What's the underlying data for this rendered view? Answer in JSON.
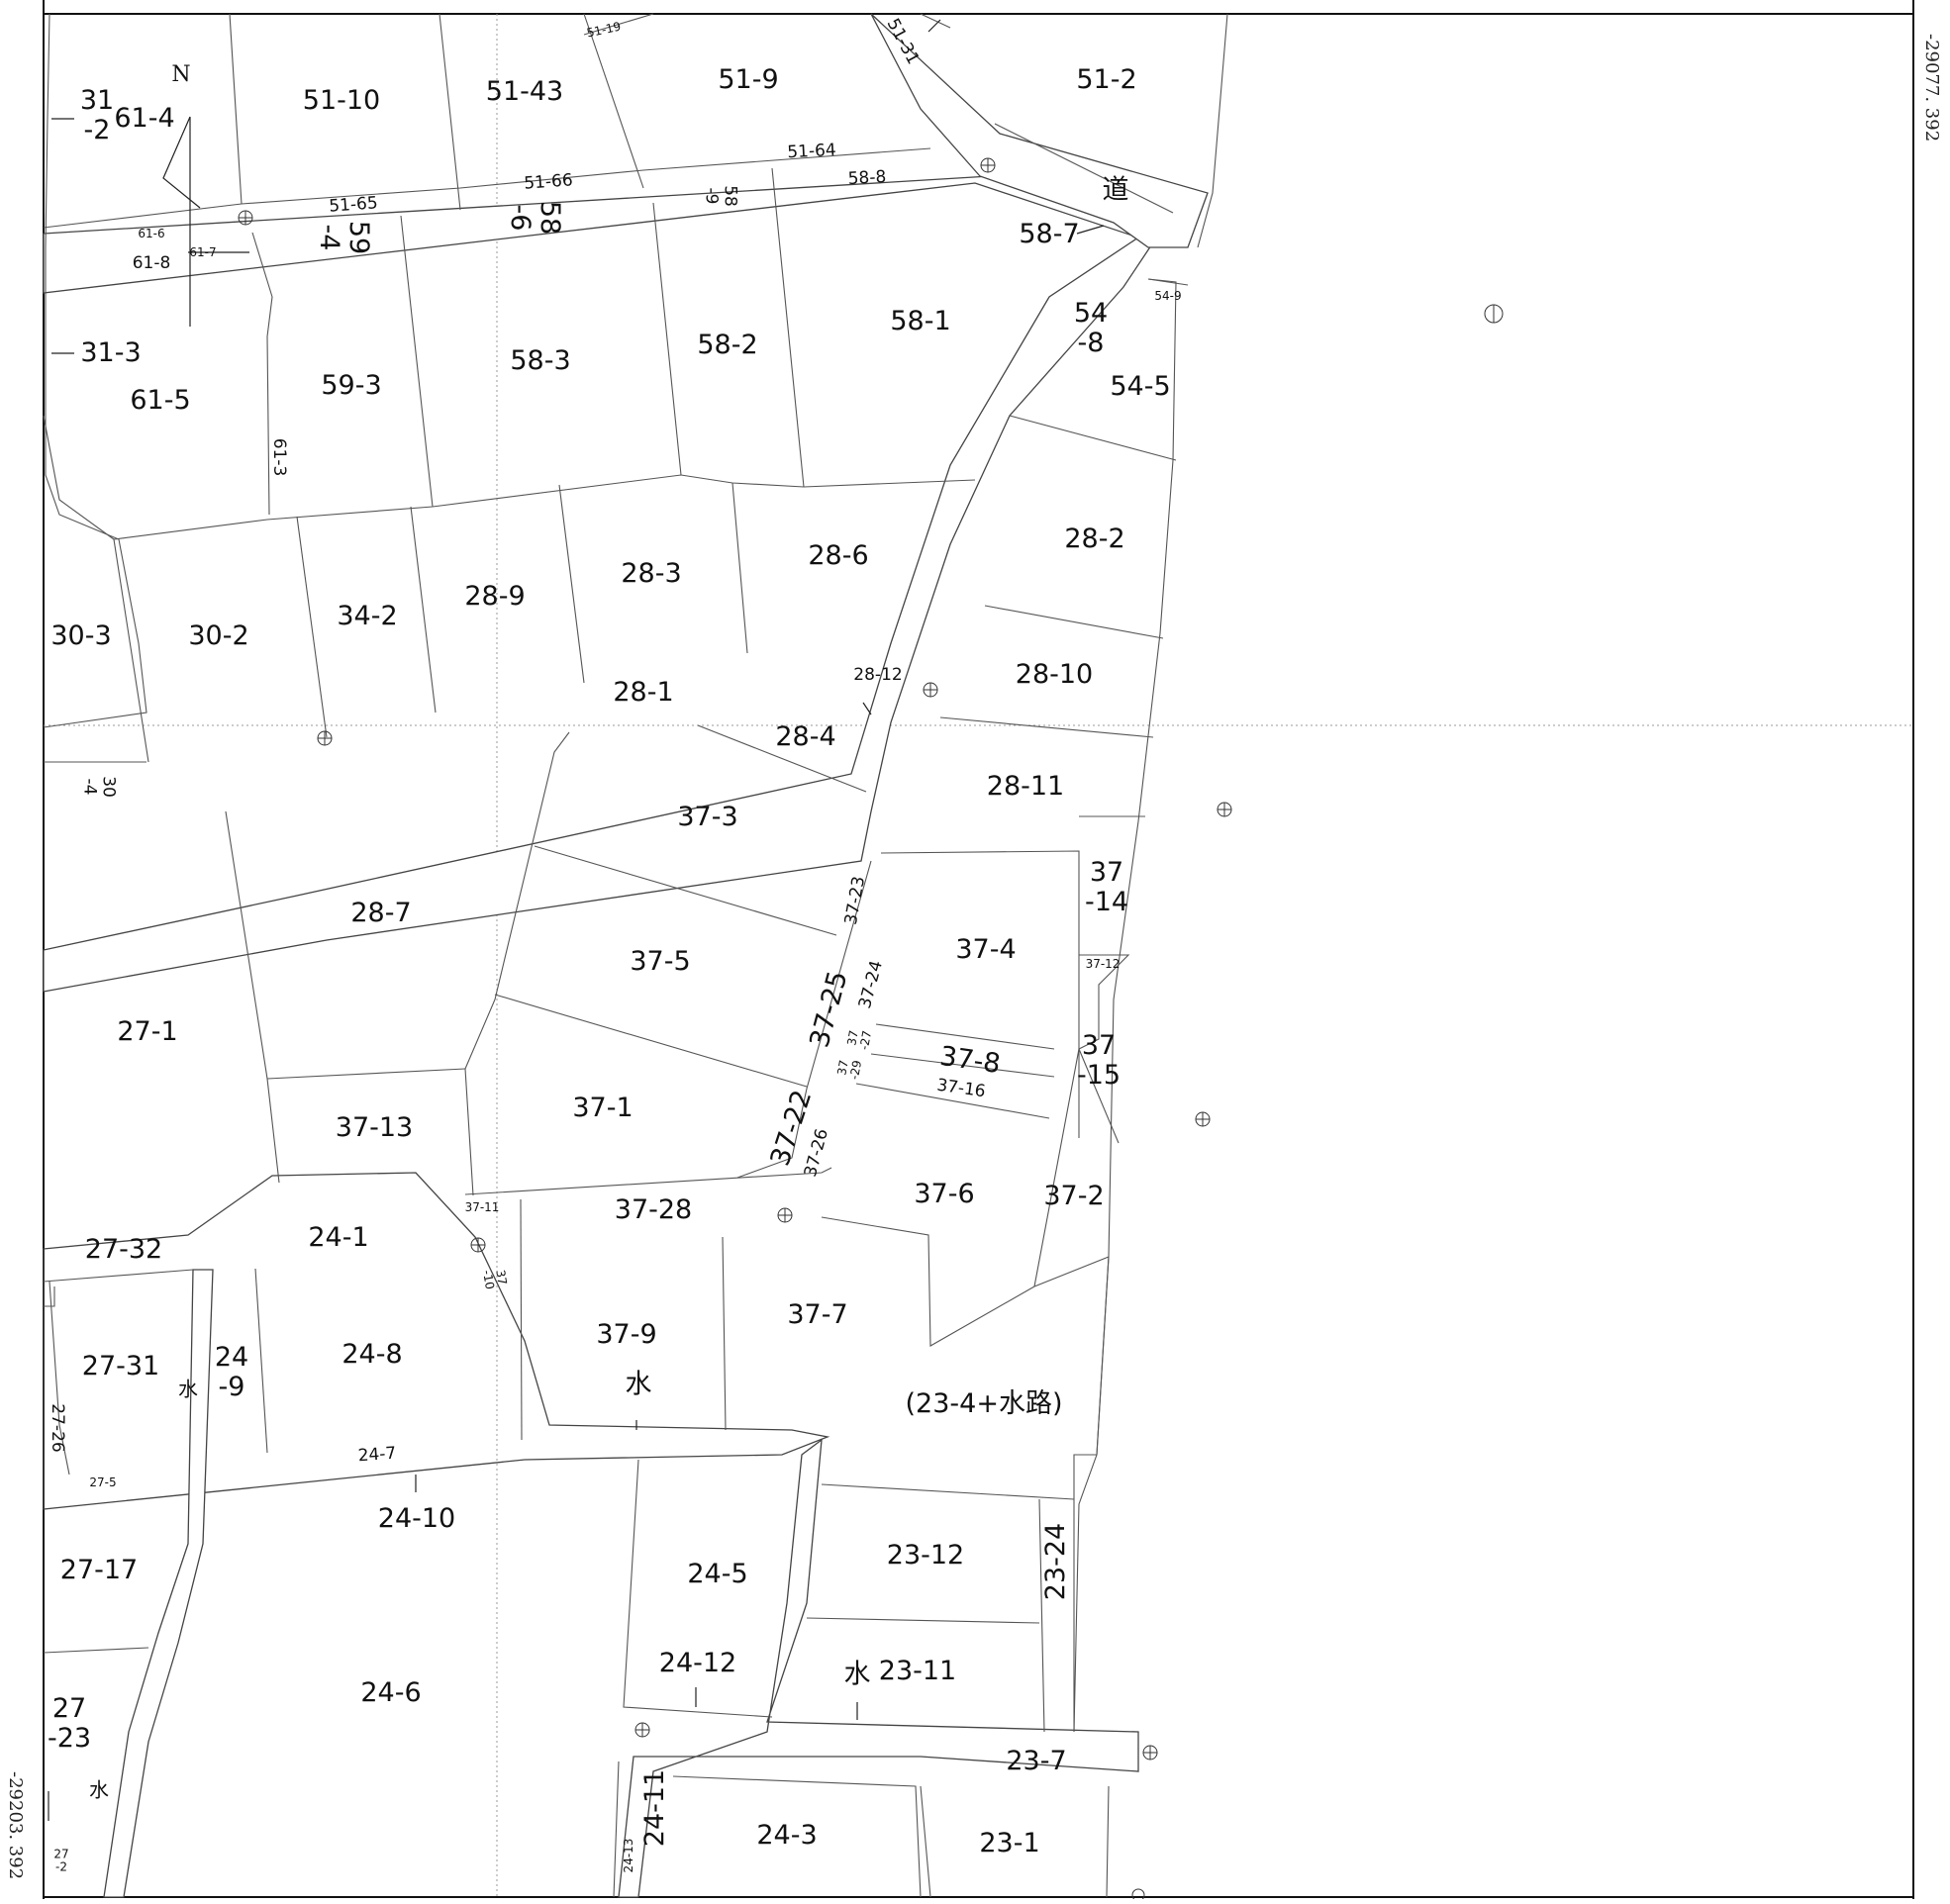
{
  "map": {
    "coord_top_right": "-29077. 392",
    "coord_bottom_left": "-29203. 392",
    "north_label": "N",
    "road_label": "道",
    "water_label": "水",
    "parcels": [
      {
        "label": "31\n-2"
      },
      {
        "label": "61-4"
      },
      {
        "label": "51-10"
      },
      {
        "label": "51-43"
      },
      {
        "label": "51-19"
      },
      {
        "label": "51-9"
      },
      {
        "label": "51-31"
      },
      {
        "label": "51-2"
      },
      {
        "label": "51-64"
      },
      {
        "label": "51-65"
      },
      {
        "label": "51-66"
      },
      {
        "label": "58-8"
      },
      {
        "label": "58\n-9"
      },
      {
        "label": "61-6"
      },
      {
        "label": "61-7"
      },
      {
        "label": "61-8"
      },
      {
        "label": "59\n-4"
      },
      {
        "label": "58\n-6"
      },
      {
        "label": "58-7"
      },
      {
        "label": "54-9"
      },
      {
        "label": "31-3"
      },
      {
        "label": "61-5"
      },
      {
        "label": "59-3"
      },
      {
        "label": "58-3"
      },
      {
        "label": "58-2"
      },
      {
        "label": "58-1"
      },
      {
        "label": "54\n-8"
      },
      {
        "label": "54-5"
      },
      {
        "label": "61-3"
      },
      {
        "label": "28-2"
      },
      {
        "label": "28-6"
      },
      {
        "label": "28-3"
      },
      {
        "label": "28-9"
      },
      {
        "label": "34-2"
      },
      {
        "label": "30-2"
      },
      {
        "label": "30-3"
      },
      {
        "label": "28-12"
      },
      {
        "label": "28-10"
      },
      {
        "label": "28-1"
      },
      {
        "label": "28-4"
      },
      {
        "label": "30\n-4"
      },
      {
        "label": "28-11"
      },
      {
        "label": "37-3"
      },
      {
        "label": "37\n-14"
      },
      {
        "label": "37-23"
      },
      {
        "label": "28-7"
      },
      {
        "label": "37-4"
      },
      {
        "label": "37-12"
      },
      {
        "label": "37-5"
      },
      {
        "label": "37-25"
      },
      {
        "label": "37-24"
      },
      {
        "label": "27-1"
      },
      {
        "label": "37\n-27"
      },
      {
        "label": "37-8"
      },
      {
        "label": "37\n-15"
      },
      {
        "label": "37\n-29"
      },
      {
        "label": "37-16"
      },
      {
        "label": "37-1"
      },
      {
        "label": "37-13"
      },
      {
        "label": "37-22"
      },
      {
        "label": "37-26"
      },
      {
        "label": "37-6"
      },
      {
        "label": "37-2"
      },
      {
        "label": "37-11"
      },
      {
        "label": "37-28"
      },
      {
        "label": "27-32"
      },
      {
        "label": "24-1"
      },
      {
        "label": "37\n-10"
      },
      {
        "label": "37-7"
      },
      {
        "label": "24-8"
      },
      {
        "label": "37-9"
      },
      {
        "label": "27-31"
      },
      {
        "label": "24\n-9"
      },
      {
        "label": "(23-4+水路)"
      },
      {
        "label": "27-26"
      },
      {
        "label": "24-7"
      },
      {
        "label": "27-5"
      },
      {
        "label": "24-10"
      },
      {
        "label": "24-5"
      },
      {
        "label": "23-12"
      },
      {
        "label": "23-24"
      },
      {
        "label": "27-17"
      },
      {
        "label": "24-12"
      },
      {
        "label": "23-11"
      },
      {
        "label": "24-6"
      },
      {
        "label": "27\n-23"
      },
      {
        "label": "23-7"
      },
      {
        "label": "24-11"
      },
      {
        "label": "24-3"
      },
      {
        "label": "23-1"
      },
      {
        "label": "24-13"
      },
      {
        "label": "27\n-2"
      }
    ]
  }
}
